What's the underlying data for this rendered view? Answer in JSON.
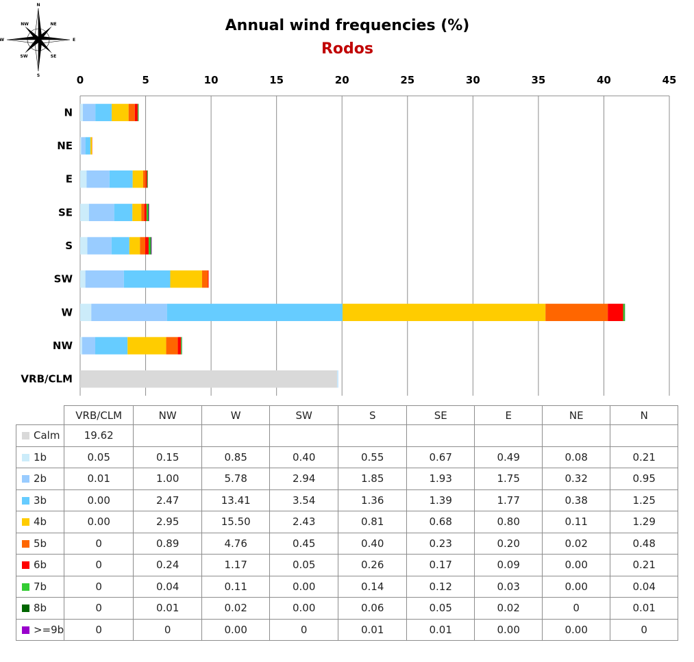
{
  "chart_data": {
    "type": "bar",
    "orientation": "horizontal",
    "stacked": true,
    "title": "Annual wind frequencies (%)",
    "subtitle": "Rodos",
    "xlim": [
      0,
      45
    ],
    "x_ticks": [
      "0",
      "5",
      "10",
      "15",
      "20",
      "25",
      "30",
      "35",
      "40",
      "45"
    ],
    "grid": true,
    "categories": [
      "N",
      "NE",
      "E",
      "SE",
      "S",
      "SW",
      "W",
      "NW",
      "VRB/CLM"
    ],
    "table_columns": [
      "VRB/CLM",
      "NW",
      "W",
      "SW",
      "S",
      "SE",
      "E",
      "NE",
      "N"
    ],
    "series": [
      {
        "name": "Calm",
        "color": "#d9d9d9",
        "values": [
          null,
          null,
          null,
          null,
          null,
          null,
          null,
          null,
          19.62
        ],
        "labels": [
          "",
          "",
          "",
          "",
          "",
          "",
          "",
          "",
          "19.62"
        ]
      },
      {
        "name": "1b",
        "color": "#ccecfa",
        "values": [
          0.21,
          0.08,
          0.49,
          0.67,
          0.55,
          0.4,
          0.85,
          0.15,
          0.05
        ],
        "labels": [
          "0.21",
          "0.08",
          "0.49",
          "0.67",
          "0.55",
          "0.40",
          "0.85",
          "0.15",
          "0.05"
        ]
      },
      {
        "name": "2b",
        "color": "#99ccff",
        "values": [
          0.95,
          0.32,
          1.75,
          1.93,
          1.85,
          2.94,
          5.78,
          1.0,
          0.01
        ],
        "labels": [
          "0.95",
          "0.32",
          "1.75",
          "1.93",
          "1.85",
          "2.94",
          "5.78",
          "1.00",
          "0.01"
        ]
      },
      {
        "name": "3b",
        "color": "#66ccff",
        "values": [
          1.25,
          0.38,
          1.77,
          1.39,
          1.36,
          3.54,
          13.41,
          2.47,
          0.0
        ],
        "labels": [
          "1.25",
          "0.38",
          "1.77",
          "1.39",
          "1.36",
          "3.54",
          "13.41",
          "2.47",
          "0.00"
        ]
      },
      {
        "name": "4b",
        "color": "#ffcc00",
        "values": [
          1.29,
          0.11,
          0.8,
          0.68,
          0.81,
          2.43,
          15.5,
          2.95,
          0.0
        ],
        "labels": [
          "1.29",
          "0.11",
          "0.80",
          "0.68",
          "0.81",
          "2.43",
          "15.50",
          "2.95",
          "0.00"
        ]
      },
      {
        "name": "5b",
        "color": "#ff6600",
        "values": [
          0.48,
          0.02,
          0.2,
          0.23,
          0.4,
          0.45,
          4.76,
          0.89,
          0
        ],
        "labels": [
          "0.48",
          "0.02",
          "0.20",
          "0.23",
          "0.40",
          "0.45",
          "4.76",
          "0.89",
          "0"
        ]
      },
      {
        "name": "6b",
        "color": "#ff0000",
        "values": [
          0.21,
          0.0,
          0.09,
          0.17,
          0.26,
          0.05,
          1.17,
          0.24,
          0
        ],
        "labels": [
          "0.21",
          "0.00",
          "0.09",
          "0.17",
          "0.26",
          "0.05",
          "1.17",
          "0.24",
          "0"
        ]
      },
      {
        "name": "7b",
        "color": "#33cc33",
        "values": [
          0.04,
          0.0,
          0.03,
          0.12,
          0.14,
          0.0,
          0.11,
          0.04,
          0
        ],
        "labels": [
          "0.04",
          "0.00",
          "0.03",
          "0.12",
          "0.14",
          "0.00",
          "0.11",
          "0.04",
          "0"
        ]
      },
      {
        "name": "8b",
        "color": "#006600",
        "values": [
          0.01,
          0,
          0.02,
          0.05,
          0.06,
          0.0,
          0.02,
          0.01,
          0
        ],
        "labels": [
          "0.01",
          "0",
          "0.02",
          "0.05",
          "0.06",
          "0.00",
          "0.02",
          "0.01",
          "0"
        ]
      },
      {
        "name": ">=9b",
        "color": "#9900cc",
        "values": [
          0,
          0.0,
          0.0,
          0.01,
          0.01,
          0,
          0.0,
          0,
          0
        ],
        "labels": [
          "0",
          "0.00",
          "0.00",
          "0.01",
          "0.01",
          "0",
          "0.00",
          "0",
          "0"
        ]
      }
    ]
  },
  "compass_rose": {
    "icon": "compass-rose-icon",
    "labels": {
      "n": "N",
      "s": "S",
      "e": "E",
      "w": "W",
      "nw": "NW",
      "ne": "NE",
      "sw": "SW",
      "se": "SE"
    }
  }
}
